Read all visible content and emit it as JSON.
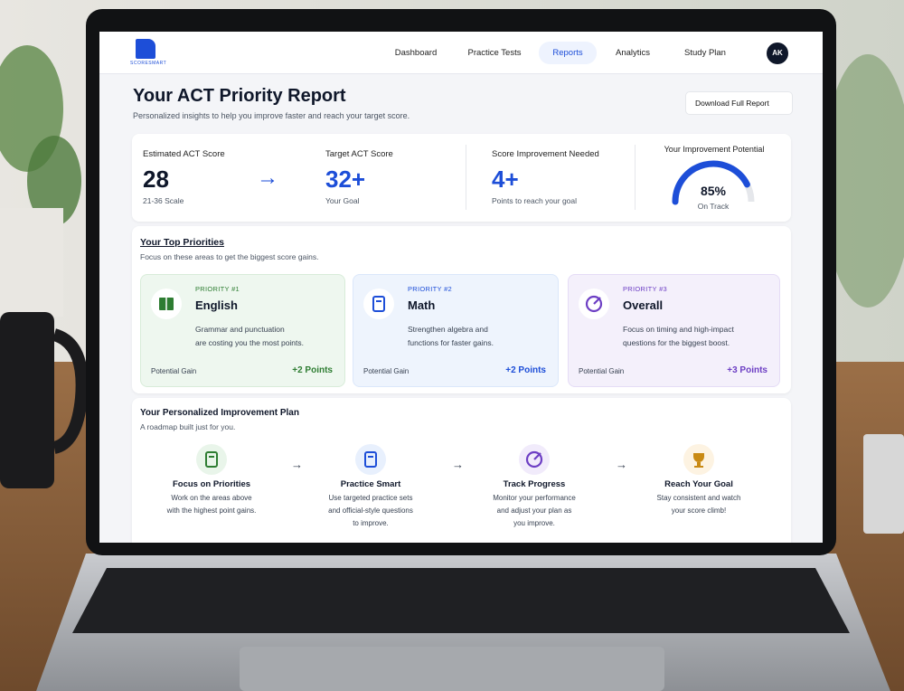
{
  "nav": {
    "logo_text": "SCORESMART",
    "items": [
      "Dashboard",
      "Practice Tests",
      "Reports",
      "Analytics",
      "Study Plan"
    ],
    "active": 2,
    "avatar": "AK"
  },
  "header": {
    "title": "Your ACT Priority Report",
    "subtitle": "Personalized insights to help you improve faster and reach your target score.",
    "download_button": "Download Full Report"
  },
  "scores": [
    {
      "label": "Estimated ACT Score",
      "value": 28,
      "caption": "21-36 Scale"
    },
    {
      "label": "Target ACT Score",
      "value": "32+",
      "caption": "Your Goal"
    },
    {
      "label": "Score Improvement Needed",
      "value": "4+",
      "caption": "Points to reach your goal"
    }
  ],
  "potential": {
    "label": "Your Improvement Potential",
    "percent": {
      "value": 85,
      "label": "85%"
    },
    "status": "On Track"
  },
  "priorities": {
    "title": "Your Top Priorities",
    "subtitle": "Focus on these areas to get the biggest score gains.",
    "cards": [
      {
        "tag": "PRIORITY #1",
        "name": "English",
        "desc": [
          "Grammar and punctuation",
          "are costing you the most points."
        ],
        "gain_label": "Potential Gain",
        "gain": "+2 Points"
      },
      {
        "tag": "PRIORITY #2",
        "name": "Math",
        "desc": [
          "Strengthen algebra and",
          "functions for faster gains."
        ],
        "gain_label": "Potential Gain",
        "gain": "+2 Points"
      },
      {
        "tag": "PRIORITY #3",
        "name": "Overall",
        "desc": [
          "Focus on timing and high-impact",
          "questions for the biggest boost."
        ],
        "gain_label": "Potential Gain",
        "gain": "+3 Points"
      }
    ]
  },
  "plan": {
    "title": "Your Personalized Improvement Plan",
    "subtitle": "A roadmap built just for you.",
    "steps": [
      {
        "title": "Focus on Priorities",
        "desc": [
          "Work on the areas above",
          "with the highest point gains."
        ]
      },
      {
        "title": "Practice Smart",
        "desc": [
          "Use targeted practice sets",
          "and official-style questions",
          "to improve."
        ]
      },
      {
        "title": "Track Progress",
        "desc": [
          "Monitor your performance",
          "and adjust your plan as",
          "you improve."
        ]
      },
      {
        "title": "Reach Your Goal",
        "desc": [
          "Stay consistent and watch",
          "your score climb!"
        ]
      }
    ]
  }
}
